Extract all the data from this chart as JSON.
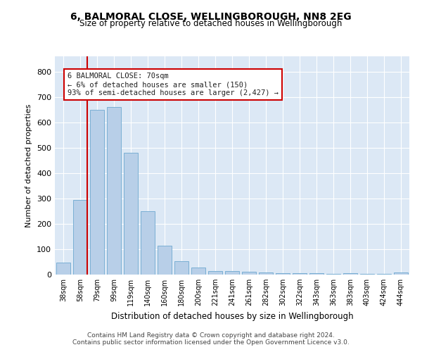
{
  "title1": "6, BALMORAL CLOSE, WELLINGBOROUGH, NN8 2EG",
  "title2": "Size of property relative to detached houses in Wellingborough",
  "xlabel": "Distribution of detached houses by size in Wellingborough",
  "ylabel": "Number of detached properties",
  "categories": [
    "38sqm",
    "58sqm",
    "79sqm",
    "99sqm",
    "119sqm",
    "140sqm",
    "160sqm",
    "180sqm",
    "200sqm",
    "221sqm",
    "241sqm",
    "261sqm",
    "282sqm",
    "302sqm",
    "322sqm",
    "343sqm",
    "363sqm",
    "383sqm",
    "403sqm",
    "424sqm",
    "444sqm"
  ],
  "values": [
    47,
    295,
    650,
    660,
    480,
    250,
    115,
    52,
    27,
    15,
    15,
    12,
    8,
    5,
    5,
    5,
    3,
    5,
    3,
    3,
    8
  ],
  "bar_color": "#b8cfe8",
  "bar_edge_color": "#7aafd4",
  "vline_color": "#cc0000",
  "annotation_text": "6 BALMORAL CLOSE: 70sqm\n← 6% of detached houses are smaller (150)\n93% of semi-detached houses are larger (2,427) →",
  "annotation_box_color": "#cc0000",
  "ylim": [
    0,
    860
  ],
  "yticks": [
    0,
    100,
    200,
    300,
    400,
    500,
    600,
    700,
    800
  ],
  "background_color": "#dce8f5",
  "footer1": "Contains HM Land Registry data © Crown copyright and database right 2024.",
  "footer2": "Contains public sector information licensed under the Open Government Licence v3.0."
}
